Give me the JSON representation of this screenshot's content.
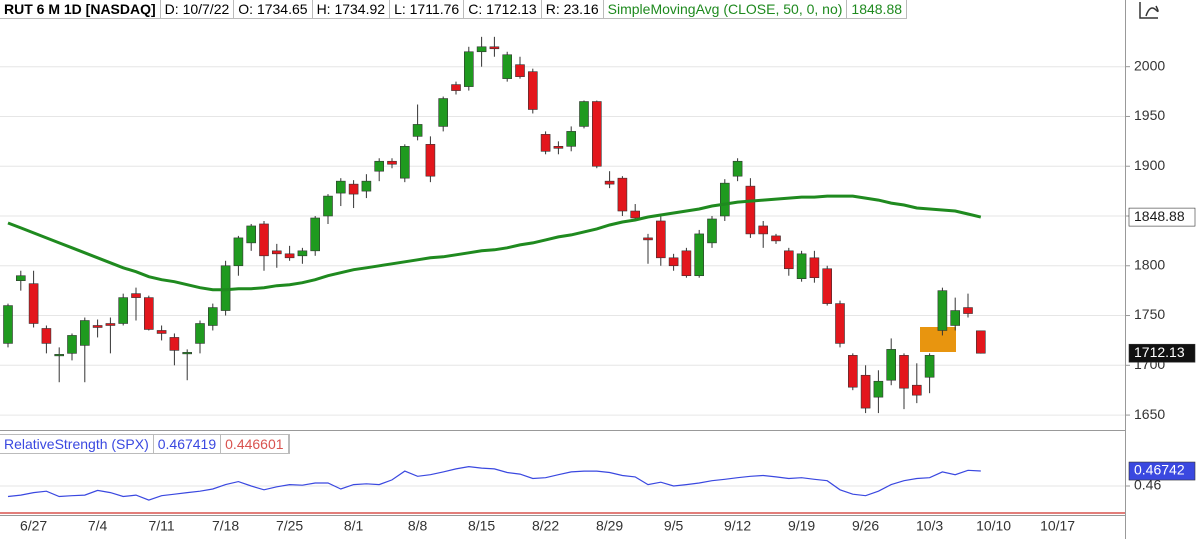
{
  "chart_data": {
    "type": "candlestick",
    "header": {
      "symbol": "RUT 6 M 1D [NASDAQ]",
      "date_label": "D:",
      "date": "10/7/22",
      "open_label": "O:",
      "high_label": "H:",
      "low_label": "L:",
      "close_label": "C:",
      "range_label": "R:",
      "range": 23.16
    },
    "categories": [
      null,
      null,
      "6/27",
      null,
      null,
      null,
      null,
      "7/4",
      null,
      null,
      null,
      null,
      "7/11",
      null,
      null,
      null,
      null,
      "7/18",
      null,
      null,
      null,
      null,
      "7/25",
      null,
      null,
      null,
      null,
      "8/1",
      null,
      null,
      null,
      null,
      "8/8",
      null,
      null,
      null,
      null,
      "8/15",
      null,
      null,
      null,
      null,
      "8/22",
      null,
      null,
      null,
      null,
      "8/29",
      null,
      null,
      null,
      null,
      "9/5",
      null,
      null,
      null,
      null,
      "9/12",
      null,
      null,
      null,
      null,
      "9/19",
      null,
      null,
      null,
      null,
      "9/26",
      null,
      null,
      null,
      null,
      "10/3",
      null,
      null,
      null,
      null,
      "10/10",
      null,
      null,
      null,
      null,
      "10/17",
      null,
      null,
      null,
      null
    ],
    "open": [
      1722,
      1785,
      1782,
      1737,
      1710,
      1712,
      1720,
      1740,
      1742,
      1742,
      1772,
      1768,
      1735,
      1728,
      1712,
      1722,
      1740,
      1755,
      1800,
      1823,
      1842,
      1815,
      1812,
      1810,
      1815,
      1850,
      1873,
      1882,
      1875,
      1895,
      1905,
      1888,
      1930,
      1922,
      1940,
      1982,
      1980,
      2015,
      2020,
      1988,
      2002,
      1995,
      1932,
      1920,
      1920,
      1940,
      1965,
      1885,
      1888,
      1855,
      1828,
      1845,
      1808,
      1815,
      1790,
      1823,
      1850,
      1890,
      1880,
      1840,
      1830,
      1815,
      1787,
      1808,
      1797,
      1762,
      1710,
      1690,
      1668,
      1685,
      1710,
      1680,
      1688,
      1735,
      1740,
      1758,
      1734.65,
      null,
      null,
      null,
      null,
      null,
      null,
      null,
      null,
      null,
      null
    ],
    "high": [
      1762,
      1795,
      1795,
      1740,
      1718,
      1732,
      1748,
      1746,
      1748,
      1772,
      1778,
      1770,
      1740,
      1732,
      1716,
      1745,
      1762,
      1805,
      1830,
      1842,
      1845,
      1822,
      1820,
      1818,
      1850,
      1872,
      1888,
      1886,
      1892,
      1908,
      1908,
      1922,
      1962,
      1930,
      1970,
      1985,
      2020,
      2030,
      2030,
      2015,
      2010,
      1998,
      1935,
      1925,
      1940,
      1966,
      1966,
      1895,
      1890,
      1862,
      1832,
      1850,
      1812,
      1818,
      1836,
      1850,
      1887,
      1908,
      1888,
      1845,
      1832,
      1818,
      1815,
      1815,
      1800,
      1765,
      1712,
      1700,
      1695,
      1727,
      1712,
      1702,
      1712,
      1778,
      1768,
      1772,
      1734.92,
      null,
      null,
      null,
      null,
      null,
      null,
      null,
      null,
      null,
      null
    ],
    "low": [
      1718,
      1775,
      1738,
      1712,
      1683,
      1705,
      1683,
      1728,
      1712,
      1740,
      1745,
      1735,
      1725,
      1700,
      1685,
      1712,
      1735,
      1750,
      1790,
      1815,
      1795,
      1798,
      1805,
      1802,
      1810,
      1842,
      1860,
      1858,
      1868,
      1885,
      1898,
      1884,
      1926,
      1884,
      1935,
      1972,
      1976,
      2000,
      2010,
      1985,
      1988,
      1953,
      1912,
      1912,
      1915,
      1938,
      1898,
      1878,
      1850,
      1845,
      1802,
      1800,
      1795,
      1788,
      1788,
      1818,
      1845,
      1885,
      1828,
      1818,
      1822,
      1790,
      1784,
      1783,
      1760,
      1718,
      1675,
      1652,
      1652,
      1680,
      1656,
      1662,
      1672,
      1730,
      1735,
      1748,
      1711.76,
      null,
      null,
      null,
      null,
      null,
      null,
      null,
      null,
      null,
      null
    ],
    "close": [
      1760,
      1790,
      1742,
      1722,
      1711,
      1730,
      1745,
      1738,
      1740,
      1768,
      1768,
      1736,
      1732,
      1715,
      1713,
      1742,
      1758,
      1800,
      1828,
      1840,
      1810,
      1812,
      1808,
      1815,
      1848,
      1870,
      1885,
      1872,
      1885,
      1905,
      1902,
      1920,
      1942,
      1890,
      1968,
      1976,
      2015,
      2020,
      2018,
      2012,
      1990,
      1957,
      1915,
      1918,
      1935,
      1965,
      1900,
      1882,
      1855,
      1848,
      1826,
      1808,
      1800,
      1790,
      1832,
      1847,
      1883,
      1905,
      1832,
      1832,
      1825,
      1797,
      1812,
      1788,
      1762,
      1722,
      1678,
      1657,
      1684,
      1716,
      1677,
      1670,
      1710,
      1775,
      1755,
      1752,
      1712.13,
      null,
      null,
      null,
      null,
      null,
      null,
      null,
      null,
      null,
      null
    ],
    "up_color": "#1f9a1f",
    "down_color": "#e3161c",
    "overlays": [
      {
        "name": "SimpleMovingAvg (CLOSE, 50, 0, no)",
        "color": "#1f8a1f",
        "values": [
          1843,
          1838,
          1833,
          1828,
          1823,
          1818,
          1813,
          1808,
          1803,
          1798,
          1794,
          1789,
          1786,
          1784,
          1781,
          1778,
          1776,
          1776,
          1777,
          1777,
          1778,
          1780,
          1781,
          1783,
          1786,
          1790,
          1793,
          1796,
          1798,
          1800,
          1802,
          1804,
          1806,
          1808,
          1809,
          1811,
          1813,
          1815,
          1816,
          1818,
          1821,
          1823,
          1826,
          1829,
          1831,
          1834,
          1837,
          1841,
          1844,
          1846,
          1849,
          1851,
          1853,
          1855,
          1857,
          1860,
          1862,
          1864,
          1865,
          1866,
          1867,
          1868,
          1869,
          1869,
          1870,
          1870,
          1870,
          1868,
          1866,
          1863,
          1861,
          1858,
          1857,
          1856,
          1855,
          1852,
          1848.88,
          null,
          null,
          null,
          null,
          null,
          null,
          null,
          null,
          null,
          null
        ]
      }
    ],
    "ylim": [
      1635,
      2067
    ],
    "yticks": [
      1650,
      1700,
      1750,
      1800,
      1850,
      1900,
      1950,
      2000
    ],
    "grid": true,
    "rs_panel": {
      "name": "RelativeStrength (SPX)",
      "color": "#3a48e0",
      "values": [
        0.4548,
        0.4555,
        0.4567,
        0.4574,
        0.4548,
        0.4552,
        0.4555,
        0.4578,
        0.4567,
        0.4548,
        0.4555,
        0.453,
        0.4552,
        0.4559,
        0.4567,
        0.4574,
        0.4585,
        0.4607,
        0.4622,
        0.46,
        0.4581,
        0.4596,
        0.4607,
        0.4604,
        0.4615,
        0.4615,
        0.4585,
        0.4607,
        0.4611,
        0.4607,
        0.463,
        0.4674,
        0.4648,
        0.4656,
        0.467,
        0.4685,
        0.4696,
        0.4689,
        0.4685,
        0.4667,
        0.4659,
        0.4637,
        0.4641,
        0.4656,
        0.467,
        0.4674,
        0.4674,
        0.4667,
        0.4652,
        0.4645,
        0.4607,
        0.4619,
        0.46,
        0.4607,
        0.4615,
        0.4626,
        0.4633,
        0.4641,
        0.4648,
        0.4652,
        0.4645,
        0.4637,
        0.4641,
        0.4633,
        0.4626,
        0.4581,
        0.4559,
        0.4552,
        0.4574,
        0.4607,
        0.4626,
        0.4637,
        0.4641,
        0.467,
        0.4656,
        0.4678,
        0.467419,
        null,
        null,
        null,
        null,
        null,
        null,
        null,
        null,
        null,
        null
      ],
      "last_value_label": "0.46742",
      "reference": 0.446601,
      "reference_color": "#d9534f",
      "ylim": [
        0.4456,
        0.4863
      ],
      "yticks": [
        0.46
      ]
    }
  }
}
